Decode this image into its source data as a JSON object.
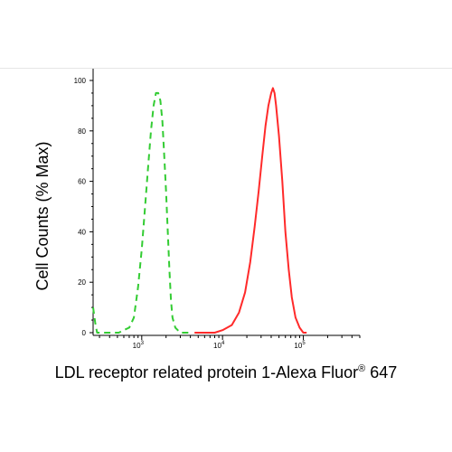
{
  "chart_data": {
    "type": "line",
    "ylabel": "Cell Counts (% Max)",
    "xlabel_main": "LDL receptor related protein 1-Alexa Fluor",
    "xlabel_sup": "®",
    "xlabel_tail": " 647",
    "x_scale": "log",
    "xlim": [
      250,
      500000
    ],
    "ylim": [
      0,
      100
    ],
    "y_ticks": [
      0,
      20,
      40,
      60,
      80,
      100
    ],
    "x_ticks": [
      {
        "value": 1000,
        "base": "10",
        "exp": "3"
      },
      {
        "value": 10000,
        "base": "10",
        "exp": "4"
      },
      {
        "value": 100000,
        "base": "10",
        "exp": "5"
      }
    ],
    "series": [
      {
        "style": "dashed",
        "color": "#33cc33",
        "points": [
          [
            250,
            10
          ],
          [
            265,
            4
          ],
          [
            280,
            0
          ],
          [
            520,
            0
          ],
          [
            600,
            1
          ],
          [
            700,
            2
          ],
          [
            800,
            6
          ],
          [
            900,
            18
          ],
          [
            1000,
            33
          ],
          [
            1100,
            50
          ],
          [
            1200,
            66
          ],
          [
            1300,
            80
          ],
          [
            1400,
            90
          ],
          [
            1500,
            95
          ],
          [
            1600,
            95
          ],
          [
            1700,
            92
          ],
          [
            1800,
            84
          ],
          [
            1900,
            70
          ],
          [
            2000,
            56
          ],
          [
            2100,
            40
          ],
          [
            2200,
            25
          ],
          [
            2300,
            13
          ],
          [
            2400,
            6
          ],
          [
            2600,
            2
          ],
          [
            3000,
            0
          ],
          [
            4000,
            0
          ]
        ]
      },
      {
        "style": "solid",
        "color": "#ff2a2a",
        "points": [
          [
            4500,
            0
          ],
          [
            8000,
            0
          ],
          [
            10000,
            1
          ],
          [
            13000,
            3
          ],
          [
            16000,
            8
          ],
          [
            19000,
            16
          ],
          [
            22000,
            28
          ],
          [
            25000,
            42
          ],
          [
            28000,
            56
          ],
          [
            31000,
            70
          ],
          [
            34000,
            82
          ],
          [
            37000,
            90
          ],
          [
            40000,
            95
          ],
          [
            42000,
            97
          ],
          [
            44000,
            95
          ],
          [
            46000,
            90
          ],
          [
            50000,
            78
          ],
          [
            55000,
            60
          ],
          [
            60000,
            40
          ],
          [
            66000,
            25
          ],
          [
            72000,
            14
          ],
          [
            80000,
            6
          ],
          [
            90000,
            2
          ],
          [
            100000,
            0
          ],
          [
            110000,
            0
          ]
        ]
      }
    ]
  }
}
